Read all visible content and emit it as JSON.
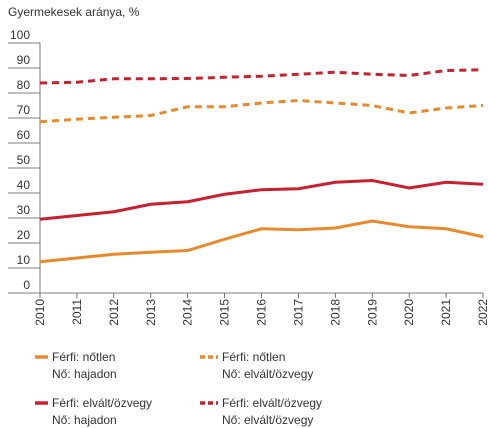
{
  "chart_data": {
    "type": "line",
    "title": "Gyermekesek aránya, %",
    "x": [
      "2010",
      "2011",
      "2012",
      "2013",
      "2014",
      "2015",
      "2016",
      "2017",
      "2018",
      "2019",
      "2020",
      "2021",
      "2022"
    ],
    "ylim": [
      0,
      100
    ],
    "yticks": [
      0,
      10,
      20,
      30,
      40,
      50,
      60,
      70,
      80,
      90,
      100
    ],
    "grid": false,
    "series": [
      {
        "name": [
          "Férfi: nőtlen",
          "Nő: hajadon"
        ],
        "color": "#e8892b",
        "dash": false,
        "values": [
          12.5,
          14,
          15.5,
          16.3,
          17,
          21.5,
          25.7,
          25.3,
          26,
          28.8,
          26.5,
          25.7,
          22.5
        ]
      },
      {
        "name": [
          "Férfi: nőtlen",
          "Nő: elvált/özvegy"
        ],
        "color": "#e8892b",
        "dash": true,
        "values": [
          68.5,
          69.5,
          70.3,
          71,
          74.5,
          74.5,
          76,
          77,
          76,
          75,
          72,
          74,
          75
        ]
      },
      {
        "name": [
          "Férfi: elvált/özvegy",
          "Nő: hajadon"
        ],
        "color": "#c8202f",
        "dash": false,
        "values": [
          29.5,
          31,
          32.5,
          35.5,
          36.5,
          39.5,
          41.3,
          41.7,
          44.3,
          45,
          42,
          44.3,
          43.5
        ]
      },
      {
        "name": [
          "Férfi: elvált/özvegy",
          "Nő: elvált/özvegy"
        ],
        "color": "#c8202f",
        "dash": true,
        "values": [
          84,
          84.3,
          85.7,
          85.7,
          85.8,
          86.3,
          86.7,
          87.5,
          88.3,
          87.5,
          87,
          89,
          89.3
        ]
      }
    ]
  }
}
